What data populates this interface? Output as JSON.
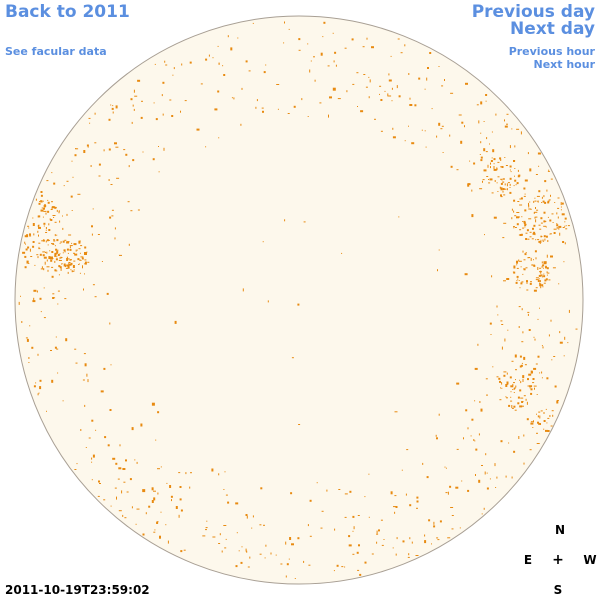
{
  "navigation": {
    "back_label": "Back to 2011",
    "facular_label": "See facular data",
    "previous_day_label": "Previous day",
    "next_day_label": "Next day",
    "previous_hour_label": "Previous hour",
    "next_hour_label": "Next hour"
  },
  "compass": {
    "north": "N",
    "east": "E",
    "center": "+",
    "west": "W",
    "south": "S"
  },
  "timestamp": "2011-10-19T23:59:02",
  "colors": {
    "link": "#5b8fe0",
    "disk_fill": "#fdf8ec",
    "disk_outline": "#a89f94",
    "facula": "#e88a10",
    "text": "#000000"
  }
}
